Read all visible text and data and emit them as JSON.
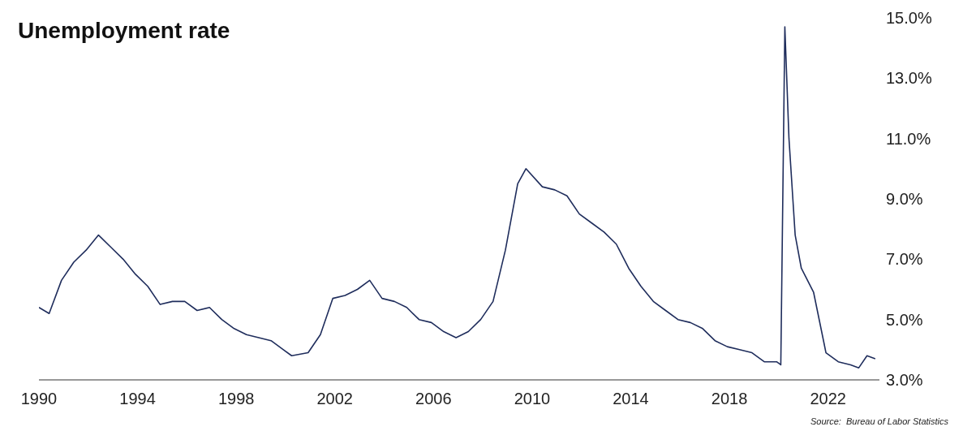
{
  "chart_data": {
    "type": "line",
    "title": "Unemployment rate",
    "annotations": [
      "Source:  Bureau of Labor Statistics"
    ],
    "x": [
      "1990-01",
      "1990-06",
      "1990-12",
      "1991-06",
      "1991-12",
      "1992-06",
      "1992-12",
      "1993-06",
      "1993-12",
      "1994-06",
      "1994-12",
      "1995-06",
      "1995-12",
      "1996-06",
      "1996-12",
      "1997-06",
      "1997-12",
      "1998-06",
      "1998-12",
      "1999-06",
      "1999-12",
      "2000-04",
      "2000-12",
      "2001-06",
      "2001-12",
      "2002-06",
      "2002-12",
      "2003-06",
      "2003-12",
      "2004-06",
      "2004-12",
      "2005-06",
      "2005-12",
      "2006-06",
      "2006-12",
      "2007-06",
      "2007-12",
      "2008-06",
      "2008-12",
      "2009-06",
      "2009-10",
      "2010-06",
      "2010-12",
      "2011-06",
      "2011-12",
      "2012-06",
      "2012-12",
      "2013-06",
      "2013-12",
      "2014-06",
      "2014-12",
      "2015-06",
      "2015-12",
      "2016-06",
      "2016-12",
      "2017-06",
      "2017-12",
      "2018-06",
      "2018-12",
      "2019-06",
      "2019-12",
      "2020-02",
      "2020-04",
      "2020-06",
      "2020-09",
      "2020-12",
      "2021-06",
      "2021-12",
      "2022-06",
      "2022-12",
      "2023-04",
      "2023-08",
      "2023-12"
    ],
    "series": [
      {
        "color": "#1f2d5c",
        "values": [
          5.4,
          5.2,
          6.3,
          6.9,
          7.3,
          7.8,
          7.4,
          7.0,
          6.5,
          6.1,
          5.5,
          5.6,
          5.6,
          5.3,
          5.4,
          5.0,
          4.7,
          4.5,
          4.4,
          4.3,
          4.0,
          3.8,
          3.9,
          4.5,
          5.7,
          5.8,
          6.0,
          6.3,
          5.7,
          5.6,
          5.4,
          5.0,
          4.9,
          4.6,
          4.4,
          4.6,
          5.0,
          5.6,
          7.3,
          9.5,
          10.0,
          9.4,
          9.3,
          9.1,
          8.5,
          8.2,
          7.9,
          7.5,
          6.7,
          6.1,
          5.6,
          5.3,
          5.0,
          4.9,
          4.7,
          4.3,
          4.1,
          4.0,
          3.9,
          3.6,
          3.6,
          3.5,
          14.7,
          11.0,
          7.8,
          6.7,
          5.9,
          3.9,
          3.6,
          3.5,
          3.4,
          3.8,
          3.7
        ]
      }
    ],
    "xlim": [
      "1990-01",
      "2024-02"
    ],
    "xticks": [
      "1990",
      "1994",
      "1998",
      "2002",
      "2006",
      "2010",
      "2014",
      "2018",
      "2022"
    ],
    "ylim": [
      3,
      15
    ],
    "yticks": [
      {
        "value": 3,
        "label": "3.0%"
      },
      {
        "value": 5,
        "label": "5.0%"
      },
      {
        "value": 7,
        "label": "7.0%"
      },
      {
        "value": 9,
        "label": "9.0%"
      },
      {
        "value": 11,
        "label": "11.0%"
      },
      {
        "value": 13,
        "label": "13.0%"
      },
      {
        "value": 15,
        "label": "15.0%"
      }
    ]
  }
}
